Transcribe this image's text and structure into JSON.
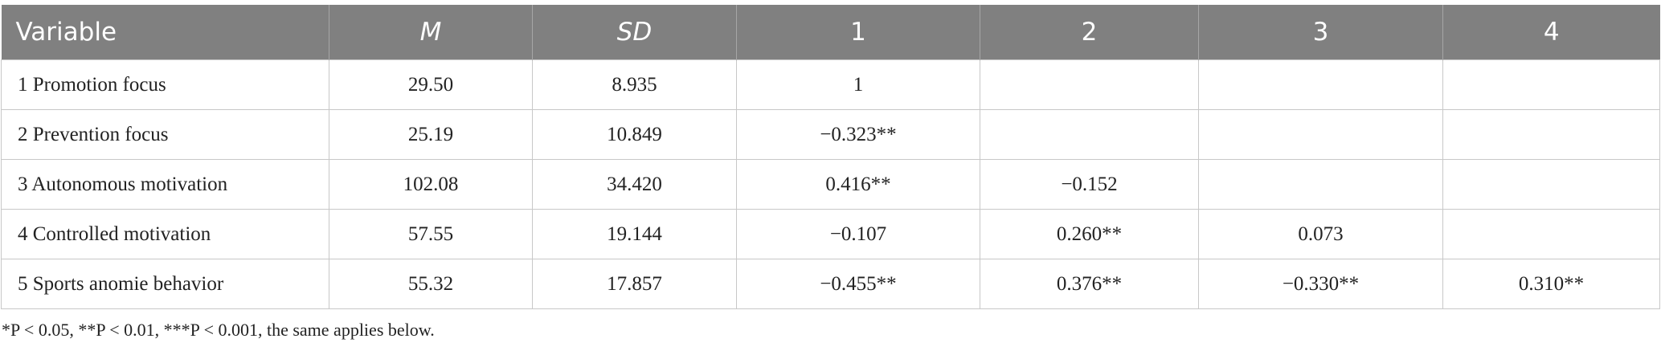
{
  "table": {
    "header": [
      "Variable",
      "M",
      "SD",
      "1",
      "2",
      "3",
      "4"
    ],
    "rows": [
      [
        "1 Promotion focus",
        "29.50",
        "8.935",
        "1",
        null,
        null,
        null
      ],
      [
        "2 Prevention focus",
        "25.19",
        "10.849",
        "−0.323**",
        null,
        null,
        null
      ],
      [
        "3 Autonomous motivation",
        "102.08",
        "34.420",
        "0.416**",
        "−0.152",
        null,
        null
      ],
      [
        "4 Controlled motivation",
        "57.55",
        "19.144",
        "−0.107",
        "0.260**",
        "0.073",
        null
      ],
      [
        "5 Sports anomie behavior",
        "55.32",
        "17.857",
        "−0.455**",
        "0.376**",
        "−0.330**",
        "0.310**"
      ]
    ],
    "footnote": "*P < 0.05, **P < 0.01, ***P < 0.001, the same applies below."
  }
}
